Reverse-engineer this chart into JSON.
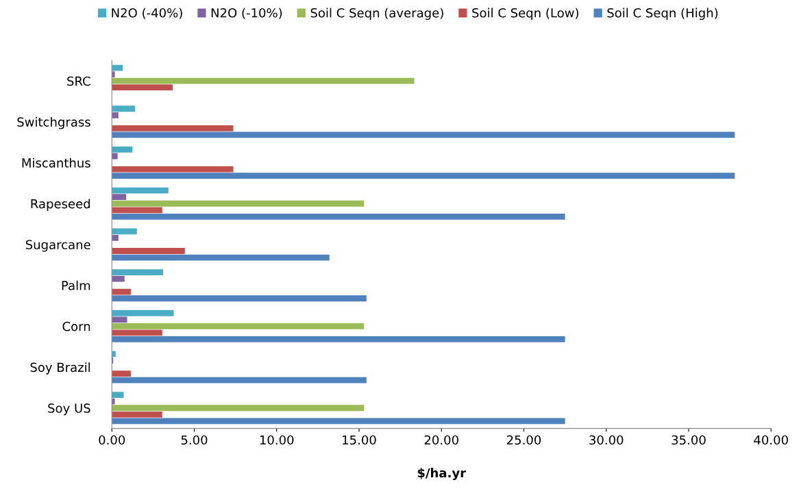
{
  "chart_data": {
    "type": "bar",
    "orientation": "horizontal",
    "xlabel": "$/ha.yr",
    "categories": [
      "SRC",
      "Switchgrass",
      "Miscanthus",
      "Rapeseed",
      "Sugarcane",
      "Palm",
      "Corn",
      "Soy Brazil",
      "Soy US"
    ],
    "series": [
      {
        "name": "N2O (-40%)",
        "color": "#4bacc6",
        "values": [
          0.66,
          1.41,
          1.25,
          3.43,
          1.52,
          3.11,
          3.75,
          0.23,
          0.72
        ]
      },
      {
        "name": "N2O (-10%)",
        "color": "#8064a2",
        "values": [
          0.18,
          0.4,
          0.35,
          0.87,
          0.4,
          0.77,
          0.93,
          0.08,
          0.18
        ]
      },
      {
        "name": "Soil C Seqn (average)",
        "color": "#9bbb59",
        "values": [
          18.35,
          null,
          null,
          15.3,
          null,
          null,
          15.3,
          null,
          15.3
        ]
      },
      {
        "name": "Soil C Seqn (Low)",
        "color": "#c0504d",
        "values": [
          3.69,
          7.37,
          7.37,
          3.06,
          4.43,
          1.15,
          3.06,
          1.15,
          3.06
        ]
      },
      {
        "name": "Soil C Seqn (High)",
        "color": "#4f81bd",
        "values": [
          null,
          37.8,
          37.8,
          27.5,
          13.2,
          15.45,
          27.5,
          15.45,
          27.5
        ]
      }
    ],
    "xlim": [
      0,
      40
    ],
    "xticks": [
      {
        "value": 0,
        "label": "0.00"
      },
      {
        "value": 5,
        "label": "5.00"
      },
      {
        "value": 10,
        "label": "10.00"
      },
      {
        "value": 15,
        "label": "15.00"
      },
      {
        "value": 20,
        "label": "20.00"
      },
      {
        "value": 25,
        "label": "25.00"
      },
      {
        "value": 30,
        "label": "30.00"
      },
      {
        "value": 35,
        "label": "35.00"
      },
      {
        "value": 40,
        "label": "40.00"
      }
    ],
    "grid": false,
    "legend": "top"
  }
}
